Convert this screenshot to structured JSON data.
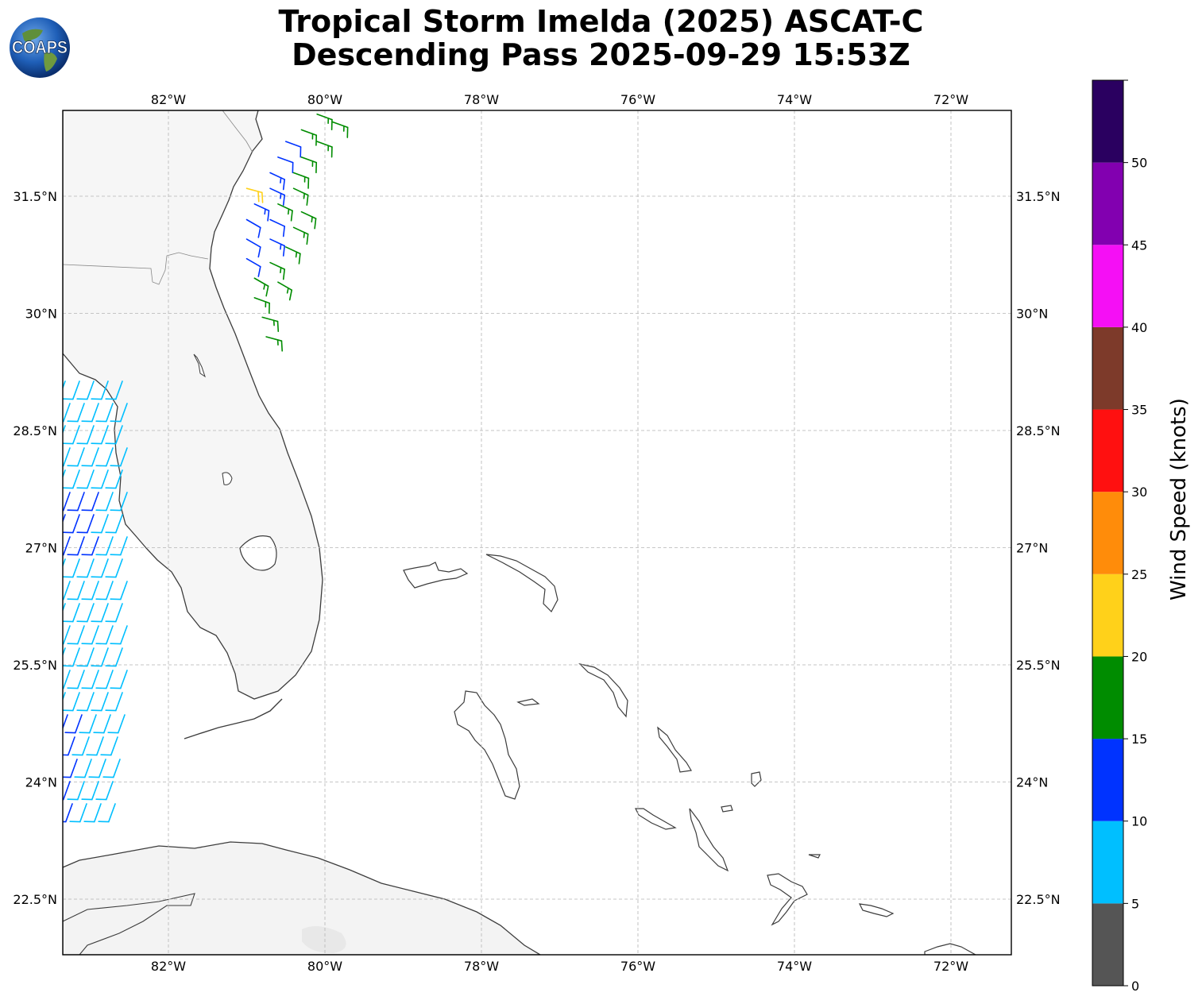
{
  "title": {
    "line1": "Tropical Storm Imelda (2025) ASCAT-C",
    "line2": "Descending Pass 2025-09-29 15:53Z"
  },
  "logo": {
    "text": "COAPS",
    "icon": "globe-logo-icon"
  },
  "map": {
    "lon_ticks": [
      "82°W",
      "80°W",
      "78°W",
      "76°W",
      "74°W",
      "72°W"
    ],
    "lat_ticks": [
      "31.5°N",
      "30°N",
      "28.5°N",
      "27°N",
      "25.5°N",
      "24°N",
      "22.5°N"
    ],
    "lon_values": [
      -82,
      -80,
      -78,
      -76,
      -74,
      -72
    ],
    "lat_values": [
      31.5,
      30,
      28.5,
      27,
      25.5,
      24,
      22.5
    ],
    "extent": {
      "lon": [
        -83.35,
        -71.2
      ],
      "lat": [
        21.6,
        32.6
      ]
    },
    "gridlines": true
  },
  "colorbar": {
    "label": "Wind Speed (knots)",
    "tick_labels": [
      "0",
      "5",
      "10",
      "15",
      "20",
      "25",
      "30",
      "35",
      "40",
      "45",
      "50"
    ],
    "bins": [
      {
        "min": 0,
        "max": 5,
        "color": "#555555"
      },
      {
        "min": 5,
        "max": 10,
        "color": "#00bfff"
      },
      {
        "min": 10,
        "max": 15,
        "color": "#0033ff"
      },
      {
        "min": 15,
        "max": 20,
        "color": "#008c00"
      },
      {
        "min": 20,
        "max": 25,
        "color": "#ffd11a"
      },
      {
        "min": 25,
        "max": 30,
        "color": "#ff8c0a"
      },
      {
        "min": 30,
        "max": 35,
        "color": "#ff1010"
      },
      {
        "min": 35,
        "max": 40,
        "color": "#7d3a2a"
      },
      {
        "min": 40,
        "max": 45,
        "color": "#f50ff5"
      },
      {
        "min": 45,
        "max": 50,
        "color": "#8200b0"
      },
      {
        "min": 50,
        "max": 55,
        "color": "#2a0060"
      }
    ]
  },
  "wind_barbs": {
    "north_swath": [
      {
        "lon": -80.1,
        "lat": 32.55,
        "speed": 17,
        "dir": 20
      },
      {
        "lon": -79.9,
        "lat": 32.45,
        "speed": 17,
        "dir": 20
      },
      {
        "lon": -80.3,
        "lat": 32.35,
        "speed": 16,
        "dir": 20
      },
      {
        "lon": -80.5,
        "lat": 32.2,
        "speed": 12,
        "dir": 20
      },
      {
        "lon": -80.1,
        "lat": 32.2,
        "speed": 16,
        "dir": 20
      },
      {
        "lon": -80.6,
        "lat": 32.0,
        "speed": 12,
        "dir": 20
      },
      {
        "lon": -80.3,
        "lat": 32.0,
        "speed": 17,
        "dir": 20
      },
      {
        "lon": -80.7,
        "lat": 31.8,
        "speed": 13,
        "dir": 25
      },
      {
        "lon": -80.4,
        "lat": 31.8,
        "speed": 17,
        "dir": 20
      },
      {
        "lon": -81.0,
        "lat": 31.6,
        "speed": 22,
        "dir": 15
      },
      {
        "lon": -80.7,
        "lat": 31.6,
        "speed": 14,
        "dir": 25
      },
      {
        "lon": -80.4,
        "lat": 31.6,
        "speed": 16,
        "dir": 25
      },
      {
        "lon": -80.9,
        "lat": 31.4,
        "speed": 13,
        "dir": 25
      },
      {
        "lon": -80.6,
        "lat": 31.4,
        "speed": 16,
        "dir": 25
      },
      {
        "lon": -80.3,
        "lat": 31.3,
        "speed": 17,
        "dir": 25
      },
      {
        "lon": -81.0,
        "lat": 31.2,
        "speed": 12,
        "dir": 30
      },
      {
        "lon": -80.7,
        "lat": 31.2,
        "speed": 12,
        "dir": 25
      },
      {
        "lon": -80.4,
        "lat": 31.1,
        "speed": 16,
        "dir": 25
      },
      {
        "lon": -81.0,
        "lat": 30.95,
        "speed": 12,
        "dir": 30
      },
      {
        "lon": -80.7,
        "lat": 30.95,
        "speed": 13,
        "dir": 25
      },
      {
        "lon": -80.5,
        "lat": 30.85,
        "speed": 16,
        "dir": 25
      },
      {
        "lon": -81.0,
        "lat": 30.7,
        "speed": 12,
        "dir": 30
      },
      {
        "lon": -80.7,
        "lat": 30.65,
        "speed": 16,
        "dir": 25
      },
      {
        "lon": -80.9,
        "lat": 30.45,
        "speed": 16,
        "dir": 30
      },
      {
        "lon": -80.6,
        "lat": 30.4,
        "speed": 16,
        "dir": 30
      },
      {
        "lon": -80.9,
        "lat": 30.2,
        "speed": 16,
        "dir": 20
      },
      {
        "lon": -80.8,
        "lat": 29.95,
        "speed": 17,
        "dir": 15
      },
      {
        "lon": -80.75,
        "lat": 29.7,
        "speed": 16,
        "dir": 15
      }
    ],
    "west_swath_rows": 20
  }
}
